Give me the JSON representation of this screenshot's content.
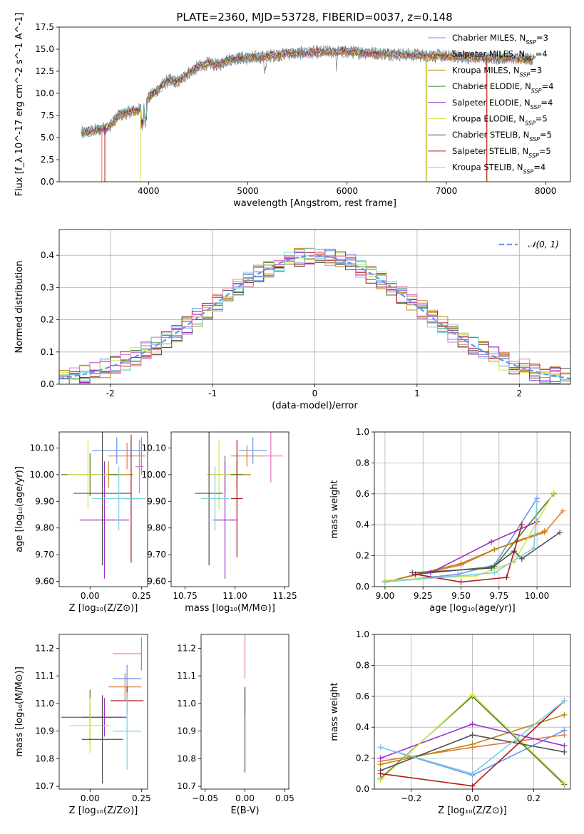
{
  "figure": {
    "title": "PLATE=2360, MJD=53728, FIBERID=0037, z=0.148"
  },
  "colors": {
    "fit_lines": [
      "#6495ed",
      "#e07a3a",
      "#b8860b",
      "#4a7a3a",
      "#9b30c8",
      "#d4e34a",
      "#505050",
      "#b01818",
      "#7ad0e0"
    ],
    "spectrum": "#808080",
    "gaussian": "#6495ed",
    "hist_extra": [
      "#e377c2"
    ]
  },
  "chart_data": [
    {
      "id": "spectrum",
      "type": "line",
      "xlabel": "wavelength [Angstrom, rest frame]",
      "ylabel": "Flux [f_λ 10^-17 erg cm^-2 s^-1 A^-1]",
      "xlim": [
        3100,
        8250
      ],
      "ylim": [
        0,
        17.5
      ],
      "xticks": [
        4000,
        5000,
        6000,
        7000,
        8000
      ],
      "yticks": [
        0.0,
        2.5,
        5.0,
        7.5,
        10.0,
        12.5,
        15.0,
        17.5
      ],
      "grid": false,
      "legend_position": "top-right",
      "legend": [
        {
          "base": "Chabrier MILES, N",
          "n": "3"
        },
        {
          "base": "Salpeter MILES, N",
          "n": "4"
        },
        {
          "base": "Kroupa MILES, N",
          "n": "3"
        },
        {
          "base": "Chabrier ELODIE, N",
          "n": "4"
        },
        {
          "base": "Salpeter ELODIE, N",
          "n": "4"
        },
        {
          "base": "Kroupa ELODIE, N",
          "n": "5"
        },
        {
          "base": "Chabrier STELIB, N",
          "n": "5"
        },
        {
          "base": "Salpeter STELIB, N",
          "n": "5"
        },
        {
          "base": "Kroupa STELIB, N",
          "n": "4"
        }
      ],
      "legend_subscript": "SSP",
      "continuum": {
        "x": [
          3320,
          3400,
          3500,
          3600,
          3700,
          3800,
          3900,
          3950,
          4000,
          4100,
          4200,
          4300,
          4400,
          4500,
          4600,
          4700,
          4800,
          4900,
          5000,
          5200,
          5400,
          5600,
          5800,
          6000,
          6200,
          6400,
          6600,
          6800,
          7000,
          7200,
          7400,
          7600,
          7800,
          7880
        ],
        "y": [
          5.5,
          5.7,
          5.9,
          6.2,
          7.5,
          7.9,
          8.1,
          8.5,
          9.5,
          10.5,
          11.5,
          11.3,
          12.3,
          13.0,
          13.4,
          13.2,
          13.8,
          14.0,
          14.0,
          14.2,
          14.5,
          14.6,
          14.7,
          14.7,
          14.6,
          14.5,
          14.4,
          14.3,
          14.2,
          14.1,
          14.0,
          14.0,
          13.9,
          13.8
        ]
      }
    },
    {
      "id": "residuals",
      "type": "histogram",
      "xlabel": "(data-model)/error",
      "ylabel": "Normed distribution",
      "xlim": [
        -2.5,
        2.5
      ],
      "ylim": [
        0,
        0.48
      ],
      "xticks": [
        -2,
        -1,
        0,
        1,
        2
      ],
      "yticks": [
        0.0,
        0.1,
        0.2,
        0.3,
        0.4
      ],
      "grid": true,
      "legend_position": "top-right",
      "legend": "𝒩(0, 1)",
      "bin_width": 0.1,
      "bin_start": -2.5,
      "gaussian": {
        "mu": 0,
        "sigma": 1
      }
    },
    {
      "id": "age-Z",
      "type": "errorbar",
      "xlabel": "Z [log₁₀(Z/Z⊙)]",
      "ylabel": "age  [log₁₀(age/yr)]",
      "xlim": [
        -0.15,
        0.28
      ],
      "ylim": [
        9.58,
        10.16
      ],
      "xticks": [
        0.0,
        0.25
      ],
      "xtick_labels": [
        "0.00",
        "0.25"
      ],
      "yticks": [
        9.6,
        9.7,
        9.8,
        9.9,
        10.0,
        10.1
      ],
      "grid": false,
      "points": [
        {
          "x": 0.13,
          "y": 10.09,
          "xerr": 0.12,
          "yerr": 0.05
        },
        {
          "x": 0.18,
          "y": 10.07,
          "xerr": 0.09,
          "yerr": 0.05
        },
        {
          "x": 0.09,
          "y": 10.0,
          "xerr": 0.12,
          "yerr": 0.05
        },
        {
          "x": 0.0,
          "y": 10.0,
          "xerr": 0.14,
          "yerr": 0.08
        },
        {
          "x": 0.07,
          "y": 9.83,
          "xerr": 0.12,
          "yerr": 0.22
        },
        {
          "x": -0.01,
          "y": 10.0,
          "xerr": 0.1,
          "yerr": 0.13
        },
        {
          "x": 0.06,
          "y": 9.93,
          "xerr": 0.14,
          "yerr": 0.27
        },
        {
          "x": 0.2,
          "y": 9.91,
          "xerr": 0.04,
          "yerr": 0.24
        },
        {
          "x": 0.14,
          "y": 9.91,
          "xerr": 0.13,
          "yerr": 0.12
        },
        {
          "x": 0.24,
          "y": 10.03,
          "xerr": 0.02,
          "yerr": 0.1
        },
        {
          "x": 0.25,
          "y": 10.07,
          "xerr": 0.0,
          "yerr": 0.07
        }
      ]
    },
    {
      "id": "age-mass",
      "type": "errorbar",
      "xlabel": "mass [log₁₀(M/M⊙)]",
      "xlim": [
        10.68,
        11.27
      ],
      "ylim": [
        9.58,
        10.16
      ],
      "xticks": [
        10.75,
        11.0,
        11.25
      ],
      "xtick_labels": [
        "10.75",
        "11.00",
        "11.25"
      ],
      "yticks": [
        9.6,
        9.7,
        9.8,
        9.9,
        10.0,
        10.1
      ],
      "grid": false,
      "points": [
        {
          "x": 11.09,
          "y": 10.09,
          "xerr": 0.07,
          "yerr": 0.05
        },
        {
          "x": 11.06,
          "y": 10.07,
          "xerr": 0.08,
          "yerr": 0.04
        },
        {
          "x": 11.01,
          "y": 10.0,
          "xerr": 0.07,
          "yerr": 0.05
        },
        {
          "x": 10.95,
          "y": 10.0,
          "xerr": 0.09,
          "yerr": 0.07
        },
        {
          "x": 10.95,
          "y": 9.83,
          "xerr": 0.06,
          "yerr": 0.22
        },
        {
          "x": 10.92,
          "y": 10.0,
          "xerr": 0.06,
          "yerr": 0.13
        },
        {
          "x": 10.87,
          "y": 9.93,
          "xerr": 0.07,
          "yerr": 0.27
        },
        {
          "x": 11.01,
          "y": 9.91,
          "xerr": 0.03,
          "yerr": 0.22
        },
        {
          "x": 10.9,
          "y": 9.91,
          "xerr": 0.07,
          "yerr": 0.12
        },
        {
          "x": 11.18,
          "y": 10.07,
          "xerr": 0.06,
          "yerr": 0.1
        }
      ]
    },
    {
      "id": "weight-age",
      "type": "line",
      "xlabel": "age  [log₁₀(age/yr)]",
      "ylabel": "mass weight",
      "xlim": [
        8.93,
        10.22
      ],
      "ylim": [
        0.0,
        1.0
      ],
      "xticks": [
        9.0,
        9.25,
        9.5,
        9.75,
        10.0
      ],
      "xtick_labels": [
        "9.00",
        "9.25",
        "9.50",
        "9.75",
        "10.00"
      ],
      "yticks": [
        0.0,
        0.2,
        0.4,
        0.6,
        0.8,
        1.0
      ],
      "grid": true,
      "series": [
        {
          "x": [
            9.0,
            9.48,
            9.72,
            10.0
          ],
          "y": [
            0.03,
            0.08,
            0.14,
            0.57
          ]
        },
        {
          "x": [
            9.0,
            9.5,
            9.72,
            10.05,
            10.17
          ],
          "y": [
            0.03,
            0.14,
            0.24,
            0.35,
            0.49
          ]
        },
        {
          "x": [
            9.0,
            9.5,
            9.72,
            10.05
          ],
          "y": [
            0.03,
            0.15,
            0.24,
            0.36
          ]
        },
        {
          "x": [
            9.2,
            9.72,
            10.11
          ],
          "y": [
            0.08,
            0.13,
            0.6
          ]
        },
        {
          "x": [
            9.3,
            9.7,
            10.0
          ],
          "y": [
            0.09,
            0.29,
            0.42
          ]
        },
        {
          "x": [
            9.0,
            9.6,
            9.85,
            10.11
          ],
          "y": [
            0.04,
            0.07,
            0.16,
            0.61
          ]
        },
        {
          "x": [
            9.18,
            9.7,
            9.85,
            9.9,
            10.15
          ],
          "y": [
            0.09,
            0.12,
            0.23,
            0.18,
            0.35
          ]
        },
        {
          "x": [
            9.2,
            9.5,
            9.8,
            9.9
          ],
          "y": [
            0.08,
            0.03,
            0.06,
            0.4
          ]
        },
        {
          "x": [
            9.0,
            9.72,
            9.98,
            10.0
          ],
          "y": [
            0.03,
            0.09,
            0.25,
            0.55
          ]
        }
      ]
    },
    {
      "id": "mass-Z",
      "type": "errorbar",
      "xlabel": "Z [log₁₀(Z/Z⊙)]",
      "ylabel": "mass [log₁₀(M/M⊙)]",
      "xlim": [
        -0.15,
        0.28
      ],
      "ylim": [
        10.69,
        11.25
      ],
      "xticks": [
        0.0,
        0.25
      ],
      "xtick_labels": [
        "0.00",
        "0.25"
      ],
      "yticks": [
        10.7,
        10.8,
        10.9,
        11.0,
        11.1,
        11.2
      ],
      "grid": false,
      "points": [
        {
          "x": 0.18,
          "y": 11.09,
          "xerr": 0.07,
          "yerr": 0.05
        },
        {
          "x": 0.17,
          "y": 11.06,
          "xerr": 0.08,
          "yerr": 0.05
        },
        {
          "x": 0.06,
          "y": 10.95,
          "xerr": 0.1,
          "yerr": 0.05
        },
        {
          "x": 0.0,
          "y": 10.95,
          "xerr": 0.14,
          "yerr": 0.1
        },
        {
          "x": 0.07,
          "y": 10.95,
          "xerr": 0.11,
          "yerr": 0.07
        },
        {
          "x": 0.0,
          "y": 10.92,
          "xerr": 0.1,
          "yerr": 0.1
        },
        {
          "x": 0.06,
          "y": 10.87,
          "xerr": 0.1,
          "yerr": 0.16
        },
        {
          "x": 0.18,
          "y": 11.01,
          "xerr": 0.08,
          "yerr": 0.05
        },
        {
          "x": 0.18,
          "y": 10.9,
          "xerr": 0.07,
          "yerr": 0.14
        },
        {
          "x": 0.18,
          "y": 11.18,
          "xerr": 0.07,
          "yerr": 0.0
        },
        {
          "x": 0.25,
          "y": 11.18,
          "xerr": 0.0,
          "yerr": 0.06
        }
      ]
    },
    {
      "id": "mass-EBV",
      "type": "errorbar",
      "xlabel": "E(B-V)",
      "xlim": [
        -0.055,
        0.055
      ],
      "ylim": [
        10.69,
        11.25
      ],
      "xticks": [
        -0.05,
        0.0,
        0.05
      ],
      "xtick_labels": [
        "−0.05",
        "0.00",
        "0.05"
      ],
      "yticks": [
        10.7,
        10.8,
        10.9,
        11.0,
        11.1,
        11.2
      ],
      "grid": false,
      "points": [
        {
          "x": 0.0,
          "y": 11.17,
          "xerr": 0.0,
          "yerr": 0.08
        },
        {
          "x": 0.0,
          "y": 11.01,
          "xerr": 0.0,
          "yerr": 0.05
        },
        {
          "x": 0.0,
          "y": 10.9,
          "xerr": 0.0,
          "yerr": 0.15
        }
      ]
    },
    {
      "id": "weight-Z",
      "type": "line",
      "xlabel": "Z [log₁₀(Z/Z⊙)]",
      "ylabel": "mass weight",
      "xlim": [
        -0.32,
        0.32
      ],
      "ylim": [
        0.0,
        1.0
      ],
      "xticks": [
        -0.2,
        0.0,
        0.2
      ],
      "xtick_labels": [
        "−0.2",
        "0.0",
        "0.2"
      ],
      "yticks": [
        0.0,
        0.2,
        0.4,
        0.6,
        0.8,
        1.0
      ],
      "grid": true,
      "series": [
        {
          "x": [
            -0.3,
            0.0,
            0.3
          ],
          "y": [
            0.27,
            0.09,
            0.38
          ]
        },
        {
          "x": [
            -0.3,
            0.0,
            0.3
          ],
          "y": [
            0.18,
            0.27,
            0.35
          ]
        },
        {
          "x": [
            -0.3,
            0.0,
            0.3
          ],
          "y": [
            0.16,
            0.29,
            0.48
          ]
        },
        {
          "x": [
            -0.3,
            0.0,
            0.3
          ],
          "y": [
            0.07,
            0.6,
            0.03
          ]
        },
        {
          "x": [
            -0.3,
            0.0,
            0.3
          ],
          "y": [
            0.2,
            0.42,
            0.28
          ]
        },
        {
          "x": [
            -0.3,
            0.0,
            0.3
          ],
          "y": [
            0.06,
            0.61,
            0.04
          ]
        },
        {
          "x": [
            -0.3,
            0.0,
            0.3
          ],
          "y": [
            0.12,
            0.35,
            0.24
          ]
        },
        {
          "x": [
            -0.3,
            0.0,
            0.3
          ],
          "y": [
            0.1,
            0.02,
            0.57
          ]
        },
        {
          "x": [
            -0.3,
            0.0,
            0.3
          ],
          "y": [
            0.27,
            0.1,
            0.57
          ]
        }
      ]
    }
  ]
}
